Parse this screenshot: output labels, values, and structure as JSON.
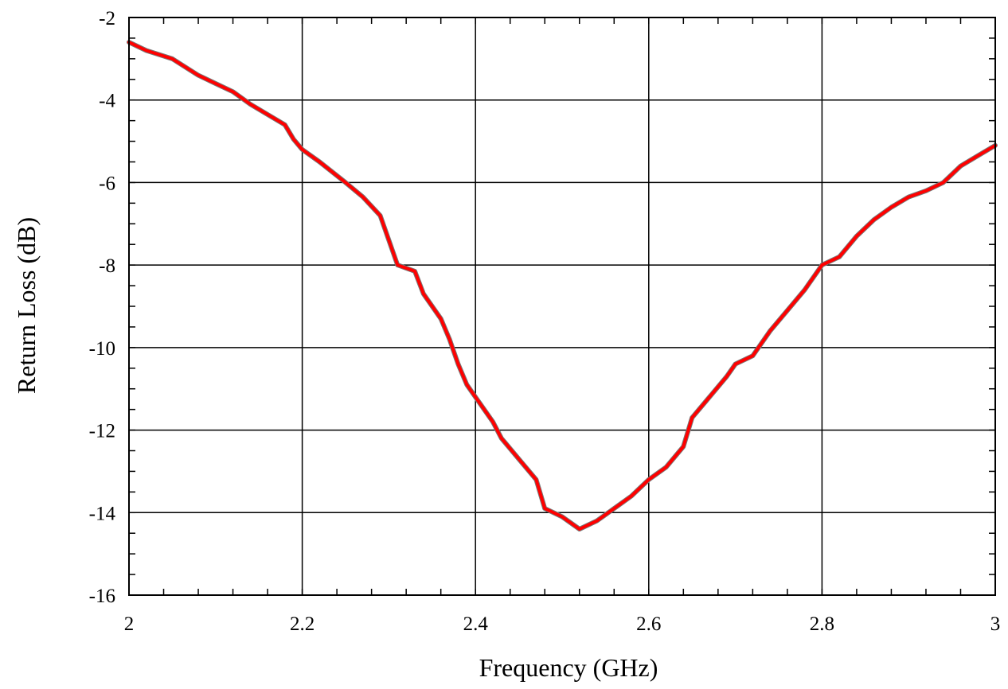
{
  "chart_data": {
    "type": "line",
    "title": "",
    "xlabel": "Frequency (GHz)",
    "ylabel": "Return Loss (dB)",
    "xlim": [
      2,
      3
    ],
    "ylim": [
      -16,
      -2
    ],
    "x_ticks": [
      "2",
      "2.2",
      "2.4",
      "2.6",
      "2.8",
      "3"
    ],
    "y_ticks": [
      "-2",
      "-4",
      "-6",
      "-8",
      "-10",
      "-12",
      "-14",
      "-16"
    ],
    "grid": true,
    "legend": "none",
    "line_color": "#ff0000",
    "series": [
      {
        "x": [
          2.0,
          2.02,
          2.05,
          2.08,
          2.1,
          2.12,
          2.14,
          2.16,
          2.18,
          2.19,
          2.2,
          2.22,
          2.25,
          2.27,
          2.29,
          2.3,
          2.31,
          2.33,
          2.34,
          2.36,
          2.37,
          2.38,
          2.39,
          2.4,
          2.42,
          2.43,
          2.45,
          2.47,
          2.48,
          2.5,
          2.52,
          2.54,
          2.56,
          2.58,
          2.6,
          2.62,
          2.64,
          2.65,
          2.67,
          2.69,
          2.7,
          2.72,
          2.74,
          2.76,
          2.78,
          2.8,
          2.82,
          2.84,
          2.86,
          2.88,
          2.9,
          2.92,
          2.94,
          2.96,
          2.98,
          3.0
        ],
        "y": [
          -2.6,
          -2.8,
          -3.0,
          -3.4,
          -3.6,
          -3.8,
          -4.1,
          -4.35,
          -4.6,
          -4.95,
          -5.2,
          -5.5,
          -6.0,
          -6.35,
          -6.8,
          -7.4,
          -8.0,
          -8.15,
          -8.7,
          -9.3,
          -9.8,
          -10.4,
          -10.9,
          -11.2,
          -11.8,
          -12.2,
          -12.7,
          -13.2,
          -13.9,
          -14.1,
          -14.4,
          -14.2,
          -13.9,
          -13.6,
          -13.2,
          -12.9,
          -12.4,
          -11.7,
          -11.2,
          -10.7,
          -10.4,
          -10.2,
          -9.6,
          -9.1,
          -8.6,
          -8.0,
          -7.8,
          -7.3,
          -6.9,
          -6.6,
          -6.35,
          -6.2,
          -6.0,
          -5.6,
          -5.35,
          -5.1
        ]
      }
    ]
  }
}
